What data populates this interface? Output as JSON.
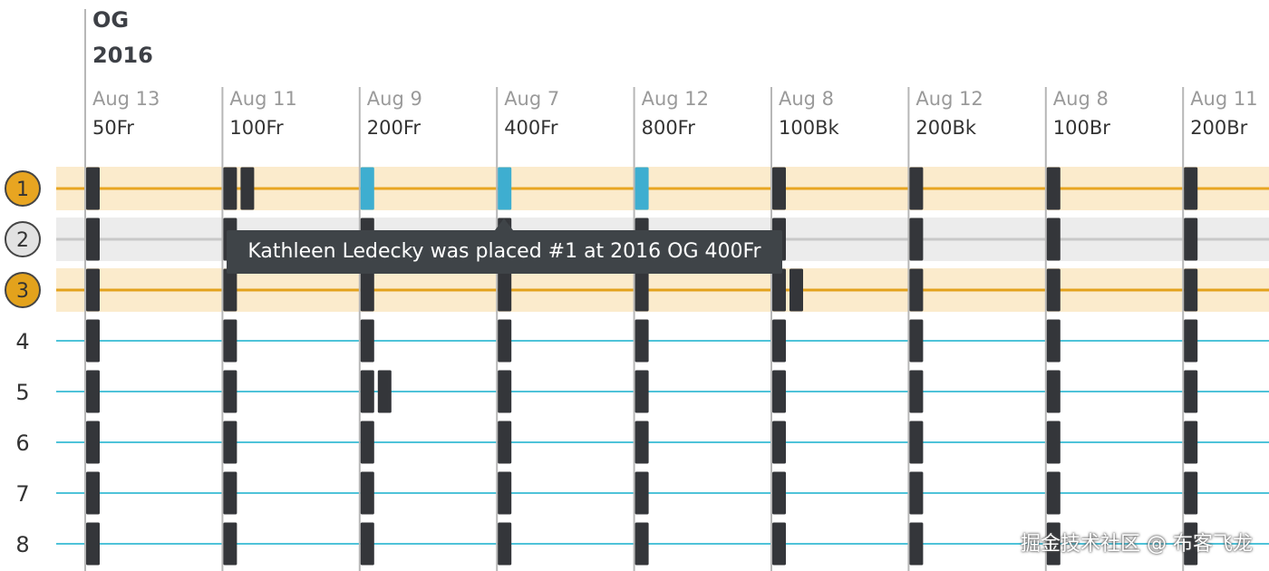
{
  "chart_data": {
    "type": "table",
    "title": "",
    "meet": "OG",
    "year": "2016",
    "events": [
      {
        "date": "Aug 13",
        "event": "50Fr"
      },
      {
        "date": "Aug 11",
        "event": "100Fr"
      },
      {
        "date": "Aug 9",
        "event": "200Fr"
      },
      {
        "date": "Aug 7",
        "event": "400Fr"
      },
      {
        "date": "Aug 12",
        "event": "800Fr"
      },
      {
        "date": "Aug 8",
        "event": "100Bk"
      },
      {
        "date": "Aug 12",
        "event": "200Bk"
      },
      {
        "date": "Aug 8",
        "event": "100Br"
      },
      {
        "date": "Aug 11",
        "event": "200Br"
      }
    ],
    "ranks": [
      "1",
      "2",
      "3",
      "4",
      "5",
      "6",
      "7",
      "8"
    ],
    "medal_ranks": [
      1,
      2,
      3
    ],
    "placements": [
      {
        "event_index": 0,
        "ranks": [
          1,
          2,
          3,
          4,
          5,
          6,
          7,
          8
        ]
      },
      {
        "event_index": 1,
        "ranks": [
          1,
          1,
          2,
          3,
          4,
          5,
          6,
          7,
          8
        ]
      },
      {
        "event_index": 2,
        "ranks": [
          1,
          2,
          3,
          4,
          5,
          5,
          6,
          7,
          8
        ]
      },
      {
        "event_index": 3,
        "ranks": [
          1,
          2,
          3,
          4,
          5,
          6,
          7,
          8
        ]
      },
      {
        "event_index": 4,
        "ranks": [
          1,
          2,
          3,
          4,
          5,
          6,
          7,
          8
        ]
      },
      {
        "event_index": 5,
        "ranks": [
          1,
          2,
          3,
          3,
          4,
          5,
          6,
          7,
          8
        ]
      },
      {
        "event_index": 6,
        "ranks": [
          1,
          2,
          3,
          4,
          5,
          6,
          7,
          8
        ]
      },
      {
        "event_index": 7,
        "ranks": [
          1,
          2,
          3,
          4,
          5,
          6,
          7,
          8
        ]
      },
      {
        "event_index": 8,
        "ranks": [
          1,
          2,
          3,
          4,
          5,
          6,
          7,
          8
        ]
      }
    ],
    "highlighted": [
      {
        "event_index": 2,
        "rank": 1
      },
      {
        "event_index": 3,
        "rank": 1
      },
      {
        "event_index": 4,
        "rank": 1
      }
    ],
    "colors": {
      "gold": "#e8a521",
      "gold_band": "#fbebcc",
      "silver": "#c8c8c8",
      "silver_band": "#ececec",
      "bronze": "#e3a21c",
      "bronze_band": "#fbebcc",
      "rank_line": "#4fc3d9",
      "mark": "#34363a",
      "highlight_mark": "#3eaed0",
      "grid": "#b7b7b7"
    }
  },
  "tooltip": {
    "text": "Kathleen Ledecky was placed #1 at 2016 OG 400Fr"
  },
  "watermark": "掘金技术社区 @ 布客飞龙"
}
